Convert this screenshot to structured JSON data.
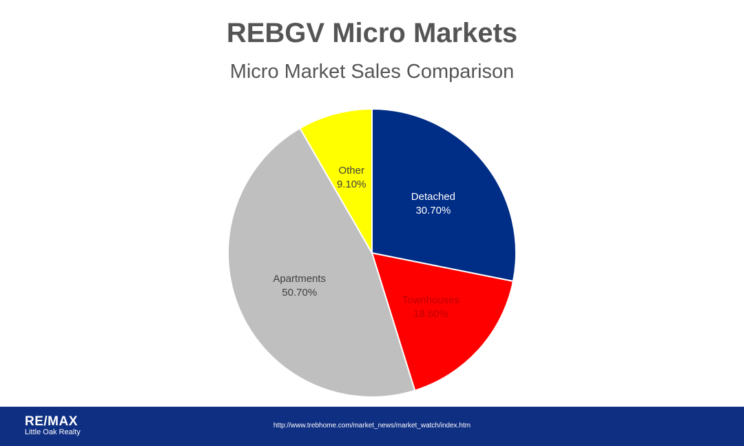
{
  "header": {
    "title": "REBGV Micro Markets",
    "subtitle": "Micro Market Sales Comparison"
  },
  "chart_data": {
    "type": "pie",
    "title": "REBGV Micro Markets",
    "subtitle": "Micro Market Sales Comparison",
    "start_angle_deg": 0,
    "direction": "clockwise",
    "slices": [
      {
        "label": "Detached",
        "value": 30.7,
        "display": "30.70%",
        "color": "#002d86",
        "label_color": "#ffffff"
      },
      {
        "label": "Townhouses",
        "value": 18.6,
        "display": "18.60%",
        "color": "#ff0000",
        "label_color": "#c00000"
      },
      {
        "label": "Apartments",
        "value": 50.7,
        "display": "50.70%",
        "color": "#bfbfbf",
        "label_color": "#404040"
      },
      {
        "label": "Other",
        "value": 9.1,
        "display": "9.10%",
        "color": "#ffff00",
        "label_color": "#404040"
      }
    ]
  },
  "footer": {
    "brand": "RE/MAX",
    "brand_sub": "Little Oak Realty",
    "source_url": "http://www.trebhome.com/market_news/market_watch/index.htm",
    "background_color": "#0f2f83"
  }
}
